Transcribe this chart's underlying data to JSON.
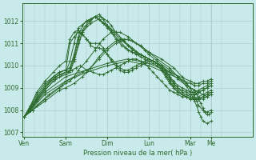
{
  "xlabel": "Pression niveau de la mer( hPa )",
  "bg_color": "#c8eaea",
  "grid_color": "#a8c8c8",
  "line_color": "#2d6a2d",
  "ylim": [
    1006.8,
    1012.8
  ],
  "xlim_days": 5.5,
  "day_labels": [
    "Ven",
    "Sam",
    "Dim",
    "Lun",
    "Mar",
    "Me"
  ],
  "day_x": [
    0,
    1,
    2,
    3,
    4,
    4.5
  ],
  "yticks": [
    1007,
    1008,
    1009,
    1010,
    1011,
    1012
  ],
  "series": [
    {
      "x": [
        0,
        0.15,
        0.3,
        0.5,
        0.7,
        0.85,
        1.0,
        1.1,
        1.2,
        1.3,
        1.4,
        1.5,
        1.6,
        1.7,
        1.8,
        1.9,
        2.0,
        2.1,
        2.2,
        2.3,
        2.4,
        2.5,
        2.6,
        2.7,
        2.8,
        2.9,
        3.0,
        3.1,
        3.2,
        3.3,
        3.4,
        3.5,
        3.6,
        3.7,
        3.8,
        3.9,
        4.0,
        4.1,
        4.2,
        4.3,
        4.4,
        4.5
      ],
      "y": [
        1007.7,
        1008.0,
        1008.5,
        1009.0,
        1009.5,
        1009.7,
        1009.8,
        1011.0,
        1011.3,
        1011.5,
        1011.4,
        1011.2,
        1011.0,
        1011.0,
        1011.0,
        1010.8,
        1010.5,
        1010.2,
        1010.0,
        1009.8,
        1009.7,
        1009.7,
        1009.8,
        1009.9,
        1010.0,
        1010.1,
        1010.2,
        1010.2,
        1010.1,
        1010.0,
        1009.8,
        1009.5,
        1009.3,
        1009.1,
        1009.0,
        1008.9,
        1008.8,
        1008.8,
        1008.9,
        1009.0,
        1009.1,
        1009.2
      ]
    },
    {
      "x": [
        0,
        0.15,
        0.3,
        0.5,
        0.7,
        0.85,
        1.0,
        1.1,
        1.2,
        1.3,
        1.4,
        1.5,
        1.6,
        1.7,
        1.8,
        1.9,
        2.0,
        2.1,
        2.2,
        2.3,
        2.4,
        2.5,
        2.6,
        2.7,
        2.8,
        2.9,
        3.0,
        3.1,
        3.2,
        3.3,
        3.4,
        3.5,
        3.6,
        3.7,
        3.8,
        3.9,
        4.0,
        4.1,
        4.2,
        4.3,
        4.4,
        4.5
      ],
      "y": [
        1007.7,
        1008.2,
        1008.8,
        1009.3,
        1009.7,
        1010.0,
        1010.2,
        1011.2,
        1011.5,
        1011.6,
        1011.4,
        1011.2,
        1010.9,
        1010.8,
        1010.8,
        1010.7,
        1010.5,
        1010.3,
        1010.1,
        1009.9,
        1009.8,
        1009.8,
        1009.9,
        1010.0,
        1010.1,
        1010.2,
        1010.3,
        1010.2,
        1010.1,
        1009.9,
        1009.7,
        1009.4,
        1009.2,
        1009.0,
        1008.9,
        1008.8,
        1008.7,
        1008.7,
        1008.8,
        1008.9,
        1009.0,
        1009.1
      ]
    },
    {
      "x": [
        0,
        0.15,
        0.3,
        0.5,
        0.7,
        0.85,
        1.0,
        1.05,
        1.15,
        1.25,
        1.35,
        1.5,
        1.65,
        1.8,
        1.9,
        2.0,
        2.1,
        2.2,
        2.3,
        2.4,
        2.5,
        2.6,
        2.7,
        2.8,
        2.9,
        3.0,
        3.1,
        3.2,
        3.3,
        3.4,
        3.5,
        3.6,
        3.7,
        3.8,
        3.9,
        4.0,
        4.1,
        4.2,
        4.3,
        4.4,
        4.5
      ],
      "y": [
        1007.7,
        1008.0,
        1008.4,
        1008.9,
        1009.3,
        1009.5,
        1009.7,
        1009.7,
        1009.8,
        1009.9,
        1010.0,
        1009.8,
        1009.7,
        1009.6,
        1009.6,
        1009.7,
        1009.8,
        1009.9,
        1010.0,
        1010.1,
        1010.2,
        1010.3,
        1010.3,
        1010.2,
        1010.1,
        1009.9,
        1009.7,
        1009.5,
        1009.3,
        1009.1,
        1008.9,
        1008.8,
        1008.7,
        1008.6,
        1008.6,
        1008.7,
        1008.7,
        1008.8,
        1008.9,
        1009.0,
        1009.1
      ]
    },
    {
      "x": [
        0,
        0.15,
        0.3,
        0.5,
        0.7,
        0.85,
        1.0,
        1.1,
        1.2,
        1.3,
        1.4,
        1.5,
        1.6,
        1.7,
        1.8,
        1.9,
        2.0,
        2.1,
        2.2,
        2.35,
        2.5,
        2.6,
        2.7,
        2.8,
        2.9,
        3.0,
        3.1,
        3.2,
        3.3,
        3.4,
        3.5,
        3.6,
        3.7,
        3.8,
        3.9,
        4.0,
        4.1,
        4.2,
        4.3,
        4.4,
        4.5
      ],
      "y": [
        1007.7,
        1008.0,
        1008.5,
        1009.0,
        1009.4,
        1009.6,
        1009.7,
        1009.8,
        1010.3,
        1011.0,
        1011.5,
        1011.8,
        1012.0,
        1012.2,
        1012.3,
        1012.1,
        1011.8,
        1011.5,
        1011.2,
        1010.9,
        1010.7,
        1010.6,
        1010.5,
        1010.4,
        1010.3,
        1010.2,
        1010.1,
        1010.0,
        1009.8,
        1009.5,
        1009.2,
        1009.0,
        1008.8,
        1008.7,
        1008.6,
        1008.5,
        1008.5,
        1008.6,
        1008.7,
        1008.8,
        1008.9
      ]
    },
    {
      "x": [
        0,
        0.15,
        0.3,
        0.5,
        0.7,
        0.85,
        1.0,
        1.1,
        1.2,
        1.3,
        1.4,
        1.55,
        1.7,
        1.85,
        2.0,
        2.1,
        2.2,
        2.35,
        2.5,
        2.6,
        2.7,
        2.8,
        2.9,
        3.0,
        3.1,
        3.2,
        3.3,
        3.4,
        3.5,
        3.6,
        3.7,
        3.8,
        3.9,
        4.0,
        4.1,
        4.2,
        4.3,
        4.4,
        4.5
      ],
      "y": [
        1007.7,
        1008.1,
        1008.6,
        1009.1,
        1009.5,
        1009.7,
        1009.8,
        1009.9,
        1010.4,
        1011.2,
        1011.6,
        1012.0,
        1012.2,
        1012.2,
        1012.0,
        1011.8,
        1011.5,
        1011.2,
        1010.9,
        1010.7,
        1010.6,
        1010.5,
        1010.4,
        1010.3,
        1010.2,
        1010.1,
        1009.9,
        1009.6,
        1009.3,
        1009.1,
        1008.9,
        1008.7,
        1008.6,
        1008.5,
        1008.5,
        1008.5,
        1008.6,
        1008.7,
        1008.8
      ]
    },
    {
      "x": [
        0,
        0.15,
        0.3,
        0.5,
        0.7,
        0.85,
        1.0,
        1.1,
        1.2,
        1.3,
        1.4,
        1.5,
        1.6,
        1.7,
        1.8,
        1.9,
        2.0,
        2.15,
        2.3,
        2.45,
        2.6,
        2.75,
        2.9,
        3.0,
        3.1,
        3.2,
        3.3,
        3.4,
        3.5,
        3.6,
        3.7,
        3.8,
        3.9,
        4.0,
        4.1,
        4.2,
        4.3,
        4.4,
        4.5
      ],
      "y": [
        1007.7,
        1008.2,
        1008.7,
        1009.2,
        1009.5,
        1009.7,
        1009.8,
        1009.9,
        1010.5,
        1011.3,
        1011.8,
        1012.0,
        1012.1,
        1012.2,
        1012.1,
        1011.9,
        1011.7,
        1011.4,
        1011.1,
        1010.8,
        1010.6,
        1010.5,
        1010.4,
        1010.3,
        1010.2,
        1010.1,
        1009.9,
        1009.6,
        1009.3,
        1009.0,
        1008.8,
        1008.7,
        1008.6,
        1008.5,
        1008.5,
        1008.5,
        1008.6,
        1008.7,
        1008.8
      ]
    },
    {
      "x": [
        0,
        0.2,
        0.5,
        0.75,
        1.0,
        1.1,
        1.2,
        1.3,
        1.5,
        1.7,
        1.9,
        2.1,
        2.3,
        2.5,
        2.7,
        2.9,
        3.0,
        3.1,
        3.2,
        3.3,
        3.4,
        3.5,
        3.6,
        3.7,
        3.8,
        3.9,
        4.0,
        4.1,
        4.2,
        4.3,
        4.4,
        4.5
      ],
      "y": [
        1007.7,
        1008.3,
        1009.0,
        1009.5,
        1009.7,
        1010.2,
        1011.0,
        1011.7,
        1012.0,
        1012.2,
        1011.9,
        1011.6,
        1011.2,
        1010.9,
        1010.6,
        1010.4,
        1010.3,
        1010.2,
        1010.1,
        1010.0,
        1009.8,
        1009.5,
        1009.2,
        1009.0,
        1008.8,
        1008.7,
        1008.6,
        1008.5,
        1008.5,
        1008.5,
        1008.6,
        1008.7
      ]
    },
    {
      "x": [
        0,
        0.2,
        0.5,
        0.75,
        1.0,
        1.1,
        1.2,
        1.4,
        1.6,
        1.8,
        2.0,
        2.2,
        2.4,
        2.6,
        2.8,
        3.0,
        3.1,
        3.2,
        3.3,
        3.5,
        3.7,
        3.9,
        4.0,
        4.1,
        4.2,
        4.3,
        4.4,
        4.5
      ],
      "y": [
        1007.7,
        1008.2,
        1008.9,
        1009.4,
        1009.6,
        1009.7,
        1010.2,
        1011.5,
        1011.9,
        1012.1,
        1011.8,
        1011.5,
        1011.1,
        1010.8,
        1010.5,
        1010.3,
        1010.2,
        1010.1,
        1010.0,
        1009.7,
        1009.4,
        1009.1,
        1009.0,
        1008.9,
        1008.8,
        1008.7,
        1008.6,
        1008.7
      ]
    },
    {
      "x": [
        0,
        0.2,
        0.5,
        0.85,
        1.0,
        1.1,
        1.2,
        1.3,
        1.5,
        1.7,
        1.9,
        2.1,
        2.3,
        2.5,
        2.7,
        2.9,
        3.0,
        3.2,
        3.5,
        3.7,
        3.9,
        4.0,
        4.1,
        4.15,
        4.2,
        4.25,
        4.3,
        4.35,
        4.4,
        4.45,
        4.5
      ],
      "y": [
        1007.7,
        1008.0,
        1008.5,
        1009.0,
        1009.2,
        1009.3,
        1009.5,
        1009.8,
        1010.2,
        1010.7,
        1011.2,
        1011.5,
        1011.5,
        1011.3,
        1011.0,
        1010.7,
        1010.5,
        1010.2,
        1009.8,
        1009.5,
        1009.2,
        1009.0,
        1008.9,
        1008.7,
        1008.5,
        1008.3,
        1008.1,
        1007.9,
        1007.8,
        1007.8,
        1007.9
      ]
    },
    {
      "x": [
        0,
        0.2,
        0.5,
        0.85,
        1.0,
        1.2,
        1.4,
        1.6,
        1.8,
        2.0,
        2.2,
        2.4,
        2.6,
        2.8,
        3.0,
        3.2,
        3.5,
        3.7,
        3.9,
        4.0,
        4.05,
        4.1,
        4.15,
        4.2,
        4.25,
        4.3,
        4.4,
        4.5
      ],
      "y": [
        1007.7,
        1008.0,
        1008.4,
        1008.9,
        1009.0,
        1009.2,
        1009.5,
        1009.9,
        1010.4,
        1010.8,
        1011.1,
        1011.2,
        1011.1,
        1010.9,
        1010.6,
        1010.3,
        1009.9,
        1009.5,
        1009.1,
        1008.8,
        1008.6,
        1008.4,
        1008.2,
        1007.9,
        1007.7,
        1007.5,
        1007.4,
        1007.5
      ]
    },
    {
      "x": [
        0,
        0.3,
        0.6,
        0.9,
        1.0,
        1.2,
        1.4,
        1.6,
        1.8,
        2.0,
        2.2,
        2.5,
        2.8,
        3.0,
        3.3,
        3.6,
        3.8,
        3.9,
        4.0,
        4.05,
        4.1,
        4.15,
        4.2,
        4.3,
        4.4,
        4.5
      ],
      "y": [
        1007.7,
        1008.2,
        1008.7,
        1009.1,
        1009.3,
        1009.5,
        1009.7,
        1009.9,
        1010.3,
        1010.7,
        1011.0,
        1011.2,
        1010.9,
        1010.6,
        1010.3,
        1009.9,
        1009.5,
        1009.2,
        1009.0,
        1008.8,
        1008.6,
        1008.4,
        1008.2,
        1008.0,
        1007.9,
        1008.0
      ]
    },
    {
      "x": [
        0,
        0.5,
        1.0,
        1.5,
        2.0,
        2.5,
        3.0,
        3.5,
        4.0,
        4.1,
        4.2,
        4.3,
        4.4,
        4.5
      ],
      "y": [
        1007.7,
        1008.8,
        1009.5,
        1009.8,
        1010.1,
        1010.3,
        1010.1,
        1009.7,
        1009.3,
        1009.2,
        1009.2,
        1009.3,
        1009.3,
        1009.4
      ]
    },
    {
      "x": [
        0,
        0.5,
        1.0,
        1.5,
        2.0,
        2.5,
        3.0,
        3.5,
        4.0,
        4.1,
        4.2,
        4.3,
        4.4,
        4.5
      ],
      "y": [
        1007.7,
        1008.7,
        1009.3,
        1009.7,
        1010.0,
        1010.2,
        1010.0,
        1009.6,
        1009.2,
        1009.1,
        1009.1,
        1009.2,
        1009.2,
        1009.3
      ]
    }
  ]
}
